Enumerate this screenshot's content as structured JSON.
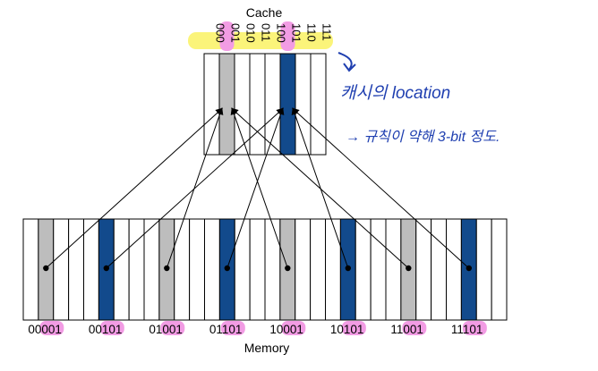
{
  "cache": {
    "title": "Cache",
    "indices": [
      "000",
      "001",
      "010",
      "011",
      "100",
      "101",
      "110",
      "111"
    ],
    "highlighted_indices": [
      1,
      5
    ]
  },
  "memory": {
    "title": "Memory",
    "addresses": [
      {
        "prefix": "00",
        "suffix": "001"
      },
      {
        "prefix": "00",
        "suffix": "101"
      },
      {
        "prefix": "01",
        "suffix": "001"
      },
      {
        "prefix": "01",
        "suffix": "101"
      },
      {
        "prefix": "10",
        "suffix": "001"
      },
      {
        "prefix": "10",
        "suffix": "101"
      },
      {
        "prefix": "11",
        "suffix": "001"
      },
      {
        "prefix": "11",
        "suffix": "101"
      }
    ],
    "block_count": 32
  },
  "annotation": {
    "line1": "캐시의 location",
    "line2": "→ 규칙이 약해 3-bit 정도."
  },
  "colors": {
    "gray_block": "#bdbdbd",
    "blue_block": "#124a8c",
    "pink_highlight": "#f29ce4",
    "yellow_highlight": "#fbf47a",
    "ink": "#1f3fb0",
    "line": "#000000"
  }
}
